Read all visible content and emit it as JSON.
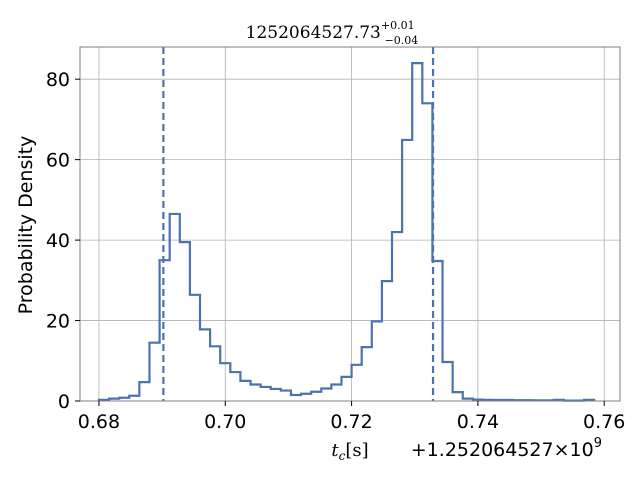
{
  "chart_data": {
    "type": "histogram",
    "title_main": "1252064527.73",
    "title_sup": "+0.01",
    "title_sub": "−0.04",
    "xlabel_var": "t",
    "xlabel_sub": "c",
    "xlabel_unit": "[s]",
    "ylabel": "Probability Density",
    "offset_text": "+1.252064527",
    "offset_times": "×",
    "offset_base": "10",
    "offset_exp": "9",
    "xlim": [
      0.677,
      0.7625
    ],
    "ylim": [
      0,
      88
    ],
    "grid": true,
    "color": "#4c72b0",
    "x_ticks": [
      0.68,
      0.7,
      0.72,
      0.74,
      0.76
    ],
    "x_tick_labels": [
      "0.68",
      "0.70",
      "0.72",
      "0.74",
      "0.76"
    ],
    "y_ticks": [
      0,
      20,
      40,
      60,
      80
    ],
    "y_tick_labels": [
      "0",
      "20",
      "40",
      "60",
      "80"
    ],
    "bin_edges": [
      0.68,
      0.6816,
      0.6832,
      0.6848,
      0.6864,
      0.688,
      0.6896,
      0.6912,
      0.6928,
      0.6944,
      0.696,
      0.6976,
      0.6992,
      0.7008,
      0.7024,
      0.704,
      0.7056,
      0.7072,
      0.7088,
      0.7104,
      0.712,
      0.7136,
      0.7152,
      0.7168,
      0.7184,
      0.72,
      0.7216,
      0.7232,
      0.7248,
      0.7264,
      0.728,
      0.7296,
      0.7312,
      0.7328,
      0.7344,
      0.736,
      0.7376,
      0.7392,
      0.7408,
      0.7424,
      0.744,
      0.7456,
      0.7472,
      0.7488,
      0.7504,
      0.752,
      0.7536,
      0.7552,
      0.7568,
      0.7584
    ],
    "densities": [
      0.3,
      0.6,
      0.8,
      1.3,
      4.7,
      14.5,
      35,
      46.5,
      39.5,
      26.4,
      17.8,
      13.6,
      9.4,
      7.2,
      5.0,
      4.1,
      3.5,
      3.0,
      2.6,
      1.5,
      1.8,
      2.3,
      3.1,
      4.1,
      6.0,
      9.0,
      13.4,
      19.8,
      29.8,
      42.0,
      64.9,
      84.0,
      74.0,
      34.8,
      9.7,
      2.2,
      0.6,
      0.35,
      0.3,
      0.25,
      0.25,
      0.2,
      0.2,
      0.15,
      0.15,
      0.3,
      0.1,
      0.1,
      0.3
    ],
    "vlines": [
      0.6902,
      0.7329
    ]
  }
}
